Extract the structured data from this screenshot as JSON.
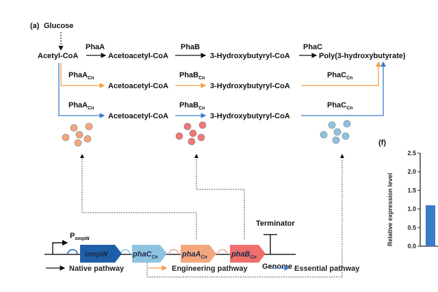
{
  "panel_a": {
    "label": "(a)",
    "source": "Glucose",
    "native_row": {
      "substrate": "Acetyl-CoA",
      "enzyme1": "PhaA",
      "intermediate1": "Acetoacetyl-CoA",
      "enzyme2": "PhaB",
      "intermediate2": "3-Hydroxybutyryl-CoA",
      "enzyme3": "PhaC",
      "product": "Poly(3-hydroxybutyrate)"
    },
    "engineering_row": {
      "enzyme1": "PhaA",
      "enzyme1_sub": "Cn",
      "intermediate1": "Acetoacetyl-CoA",
      "enzyme2": "PhaB",
      "enzyme2_sub": "Cn",
      "intermediate2": "3-Hydroxybutyryl-CoA",
      "enzyme3": "PhaC",
      "enzyme3_sub": "Cn"
    },
    "essential_row": {
      "enzyme1": "PhaA",
      "enzyme1_sub": "Cn",
      "intermediate1": "Acetoacetyl-CoA",
      "enzyme2": "PhaB",
      "enzyme2_sub": "Cn",
      "intermediate2": "3-Hydroxybutyryl-CoA",
      "enzyme3": "PhaC",
      "enzyme3_sub": "Cn"
    },
    "construct": {
      "promoter": "P",
      "promoter_sub": "ompW",
      "genes": [
        {
          "name": "ompW",
          "sub": "",
          "color": "#1f5fa8"
        },
        {
          "name": "phaC",
          "sub": "Cn",
          "color": "#8ec3e0"
        },
        {
          "name": "phaA",
          "sub": "Cn",
          "color": "#f4a77f"
        },
        {
          "name": "phaB",
          "sub": "Cn",
          "color": "#ef6f6c"
        }
      ],
      "terminator": "Terminator",
      "genome": "Genome"
    },
    "legend": [
      {
        "label": "Native pathway",
        "color": "#111111"
      },
      {
        "label": "Engineering pathway",
        "color": "#f0a040"
      },
      {
        "label": "Essential pathway",
        "color": "#3a7cc8"
      }
    ],
    "colors": {
      "protein_a": "#f4a77f",
      "protein_b": "#ef7a78",
      "protein_c": "#8ec3e0"
    }
  },
  "panel_f": {
    "label": "(f)",
    "ylabel": "Relative expression level",
    "yticks": [
      "0.0",
      "0.5",
      "1.0",
      "1.5",
      "2.0",
      "2.5"
    ],
    "bar_value": 1.1,
    "bar_color": "#3a7cc8"
  }
}
